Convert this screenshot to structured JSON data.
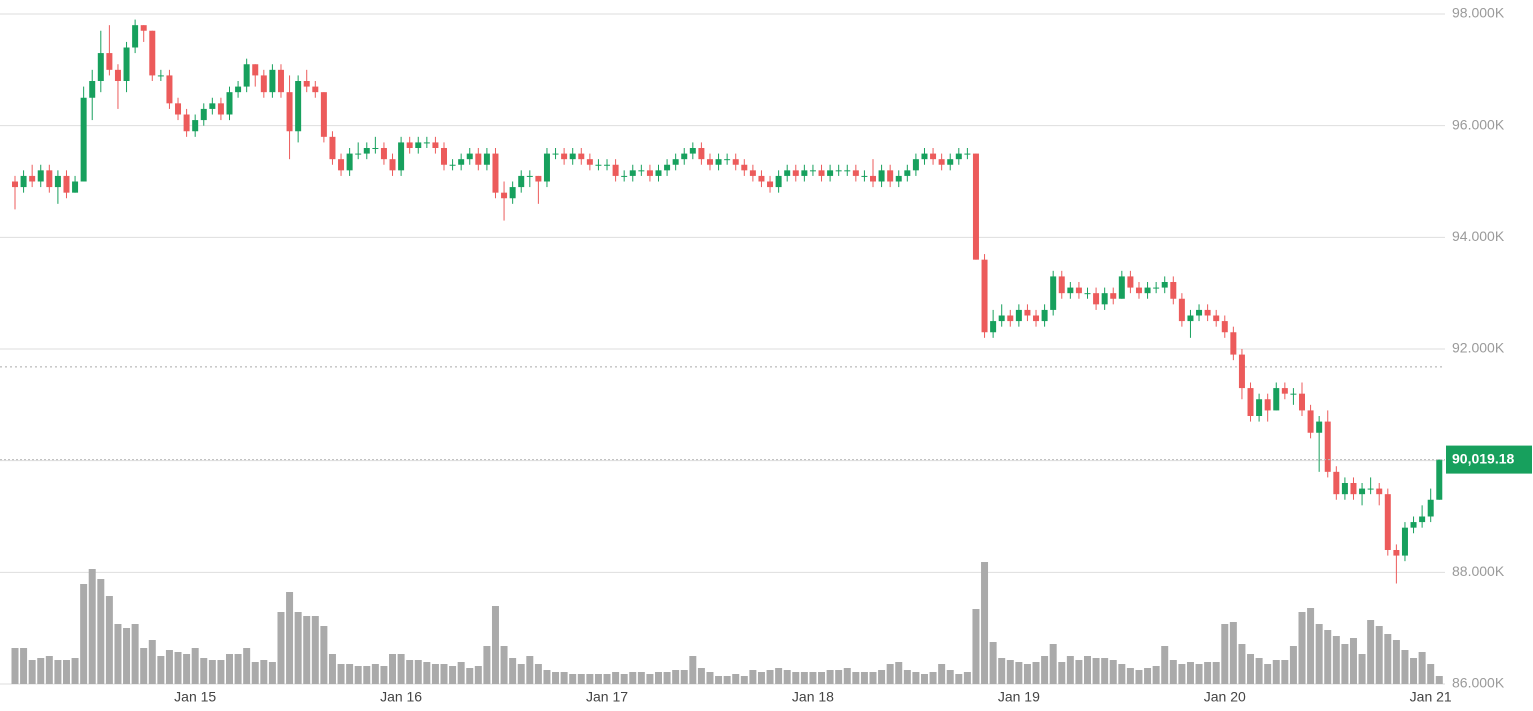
{
  "chart_data": {
    "type": "candlestick",
    "ylim": [
      86000,
      98000
    ],
    "yticks": [
      {
        "value": 86000,
        "label": "86.000K"
      },
      {
        "value": 88000,
        "label": "88.000K"
      },
      {
        "value": 90000,
        "label": "90.000K"
      },
      {
        "value": 92000,
        "label": "92.000K"
      },
      {
        "value": 94000,
        "label": "94.000K"
      },
      {
        "value": 96000,
        "label": "96.000K"
      },
      {
        "value": 98000,
        "label": "98.000K"
      }
    ],
    "grid": true,
    "up_color": "#17a05d",
    "down_color": "#ec5b5b",
    "volume_color": "#aaaaaa",
    "last_price_label": "90,019.18",
    "reference_line": 91680,
    "categories": [
      null,
      null,
      null,
      null,
      null,
      null,
      null,
      null,
      null,
      null,
      null,
      null,
      null,
      null,
      null,
      null,
      null,
      null,
      null,
      null,
      null,
      "Jan 15",
      null,
      null,
      null,
      null,
      null,
      null,
      null,
      null,
      null,
      null,
      null,
      null,
      null,
      null,
      null,
      null,
      null,
      null,
      null,
      null,
      null,
      null,
      null,
      "Jan 16",
      null,
      null,
      null,
      null,
      null,
      null,
      null,
      null,
      null,
      null,
      null,
      null,
      null,
      null,
      null,
      null,
      null,
      null,
      null,
      null,
      null,
      null,
      null,
      "Jan 17",
      null,
      null,
      null,
      null,
      null,
      null,
      null,
      null,
      null,
      null,
      null,
      null,
      null,
      null,
      null,
      null,
      null,
      null,
      null,
      null,
      null,
      null,
      null,
      "Jan 18",
      null,
      null,
      null,
      null,
      null,
      null,
      null,
      null,
      null,
      null,
      null,
      null,
      null,
      null,
      null,
      null,
      null,
      null,
      null,
      null,
      null,
      null,
      null,
      "Jan 19",
      null,
      null,
      null,
      null,
      null,
      null,
      null,
      null,
      null,
      null,
      null,
      null,
      null,
      null,
      null,
      null,
      null,
      null,
      null,
      null,
      null,
      null,
      null,
      "Jan 20",
      null,
      null,
      null,
      null,
      null,
      null,
      null,
      null,
      null,
      null,
      null,
      null,
      null,
      null,
      null,
      null,
      null,
      null,
      null,
      null,
      null,
      null,
      null,
      "Jan 21",
      null
    ],
    "ohlc": [
      [
        95000,
        95100,
        94500,
        94900
      ],
      [
        94900,
        95200,
        94800,
        95100
      ],
      [
        95100,
        95300,
        94900,
        95000
      ],
      [
        95000,
        95300,
        94900,
        95200
      ],
      [
        95200,
        95300,
        94800,
        94900
      ],
      [
        94900,
        95200,
        94600,
        95100
      ],
      [
        95100,
        95200,
        94700,
        94800
      ],
      [
        94800,
        95100,
        94800,
        95000
      ],
      [
        95000,
        96700,
        95000,
        96500
      ],
      [
        96500,
        97000,
        96100,
        96800
      ],
      [
        96800,
        97700,
        96600,
        97300
      ],
      [
        97300,
        97800,
        96900,
        97000
      ],
      [
        97000,
        97100,
        96300,
        96800
      ],
      [
        96800,
        97500,
        96600,
        97400
      ],
      [
        97400,
        97900,
        97300,
        97800
      ],
      [
        97800,
        97800,
        97500,
        97700
      ],
      [
        97700,
        97700,
        96800,
        96900
      ],
      [
        96900,
        97000,
        96800,
        96900
      ],
      [
        96900,
        97000,
        96300,
        96400
      ],
      [
        96400,
        96500,
        96100,
        96200
      ],
      [
        96200,
        96300,
        95800,
        95900
      ],
      [
        95900,
        96200,
        95800,
        96100
      ],
      [
        96100,
        96400,
        96000,
        96300
      ],
      [
        96300,
        96500,
        96200,
        96400
      ],
      [
        96400,
        96500,
        96100,
        96200
      ],
      [
        96200,
        96700,
        96100,
        96600
      ],
      [
        96600,
        96800,
        96500,
        96700
      ],
      [
        96700,
        97200,
        96600,
        97100
      ],
      [
        97100,
        97100,
        96700,
        96900
      ],
      [
        96900,
        97000,
        96500,
        96600
      ],
      [
        96600,
        97100,
        96500,
        97000
      ],
      [
        97000,
        97100,
        96500,
        96600
      ],
      [
        96600,
        96900,
        95400,
        95900
      ],
      [
        95900,
        96900,
        95700,
        96800
      ],
      [
        96800,
        97000,
        96600,
        96700
      ],
      [
        96700,
        96800,
        96500,
        96600
      ],
      [
        96600,
        96600,
        95700,
        95800
      ],
      [
        95800,
        95900,
        95300,
        95400
      ],
      [
        95400,
        95500,
        95100,
        95200
      ],
      [
        95200,
        95600,
        95100,
        95500
      ],
      [
        95500,
        95700,
        95400,
        95500
      ],
      [
        95500,
        95700,
        95400,
        95600
      ],
      [
        95600,
        95800,
        95500,
        95600
      ],
      [
        95600,
        95700,
        95300,
        95400
      ],
      [
        95400,
        95500,
        95100,
        95200
      ],
      [
        95200,
        95800,
        95100,
        95700
      ],
      [
        95700,
        95800,
        95500,
        95600
      ],
      [
        95600,
        95800,
        95500,
        95700
      ],
      [
        95700,
        95800,
        95600,
        95700
      ],
      [
        95700,
        95800,
        95500,
        95600
      ],
      [
        95600,
        95700,
        95200,
        95300
      ],
      [
        95300,
        95400,
        95200,
        95300
      ],
      [
        95300,
        95500,
        95200,
        95400
      ],
      [
        95400,
        95600,
        95300,
        95500
      ],
      [
        95500,
        95600,
        95200,
        95300
      ],
      [
        95300,
        95600,
        95200,
        95500
      ],
      [
        95500,
        95600,
        94700,
        94800
      ],
      [
        94800,
        95000,
        94300,
        94700
      ],
      [
        94700,
        95000,
        94600,
        94900
      ],
      [
        94900,
        95200,
        94800,
        95100
      ],
      [
        95100,
        95200,
        94900,
        95100
      ],
      [
        95100,
        95100,
        94600,
        95000
      ],
      [
        95000,
        95600,
        94900,
        95500
      ],
      [
        95500,
        95600,
        95400,
        95500
      ],
      [
        95500,
        95600,
        95300,
        95400
      ],
      [
        95400,
        95600,
        95300,
        95500
      ],
      [
        95500,
        95600,
        95300,
        95400
      ],
      [
        95400,
        95500,
        95200,
        95300
      ],
      [
        95300,
        95400,
        95200,
        95300
      ],
      [
        95300,
        95400,
        95200,
        95300
      ],
      [
        95300,
        95400,
        95000,
        95100
      ],
      [
        95100,
        95200,
        95000,
        95100
      ],
      [
        95100,
        95300,
        95000,
        95200
      ],
      [
        95200,
        95300,
        95100,
        95200
      ],
      [
        95200,
        95300,
        95000,
        95100
      ],
      [
        95100,
        95300,
        95000,
        95200
      ],
      [
        95200,
        95400,
        95100,
        95300
      ],
      [
        95300,
        95500,
        95200,
        95400
      ],
      [
        95400,
        95600,
        95300,
        95500
      ],
      [
        95500,
        95700,
        95400,
        95600
      ],
      [
        95600,
        95700,
        95300,
        95400
      ],
      [
        95400,
        95500,
        95200,
        95300
      ],
      [
        95300,
        95500,
        95200,
        95400
      ],
      [
        95400,
        95500,
        95300,
        95400
      ],
      [
        95400,
        95500,
        95200,
        95300
      ],
      [
        95300,
        95400,
        95100,
        95200
      ],
      [
        95200,
        95300,
        95000,
        95100
      ],
      [
        95100,
        95200,
        94900,
        95000
      ],
      [
        95000,
        95100,
        94800,
        94900
      ],
      [
        94900,
        95200,
        94800,
        95100
      ],
      [
        95100,
        95300,
        95000,
        95200
      ],
      [
        95200,
        95300,
        95000,
        95100
      ],
      [
        95100,
        95300,
        95000,
        95200
      ],
      [
        95200,
        95300,
        95100,
        95200
      ],
      [
        95200,
        95300,
        95000,
        95100
      ],
      [
        95100,
        95300,
        95000,
        95200
      ],
      [
        95200,
        95300,
        95100,
        95200
      ],
      [
        95200,
        95300,
        95100,
        95200
      ],
      [
        95200,
        95300,
        95000,
        95100
      ],
      [
        95100,
        95200,
        95000,
        95100
      ],
      [
        95100,
        95400,
        94900,
        95000
      ],
      [
        95000,
        95300,
        94900,
        95200
      ],
      [
        95200,
        95300,
        94900,
        95000
      ],
      [
        95000,
        95200,
        94900,
        95100
      ],
      [
        95100,
        95300,
        95000,
        95200
      ],
      [
        95200,
        95500,
        95100,
        95400
      ],
      [
        95400,
        95600,
        95300,
        95500
      ],
      [
        95500,
        95600,
        95300,
        95400
      ],
      [
        95400,
        95500,
        95200,
        95300
      ],
      [
        95300,
        95500,
        95200,
        95400
      ],
      [
        95400,
        95600,
        95300,
        95500
      ],
      [
        95500,
        95600,
        95400,
        95500
      ],
      [
        95500,
        95500,
        93600,
        93600
      ],
      [
        93600,
        93700,
        92200,
        92300
      ],
      [
        92300,
        92700,
        92200,
        92500
      ],
      [
        92500,
        92800,
        92400,
        92600
      ],
      [
        92600,
        92700,
        92400,
        92500
      ],
      [
        92500,
        92800,
        92400,
        92700
      ],
      [
        92700,
        92800,
        92500,
        92600
      ],
      [
        92600,
        92700,
        92400,
        92500
      ],
      [
        92500,
        92800,
        92400,
        92700
      ],
      [
        92700,
        93400,
        92600,
        93300
      ],
      [
        93300,
        93400,
        92900,
        93000
      ],
      [
        93000,
        93200,
        92900,
        93100
      ],
      [
        93100,
        93200,
        92900,
        93000
      ],
      [
        93000,
        93100,
        92900,
        93000
      ],
      [
        93000,
        93100,
        92700,
        92800
      ],
      [
        92800,
        93100,
        92700,
        93000
      ],
      [
        93000,
        93100,
        92800,
        92900
      ],
      [
        92900,
        93400,
        92900,
        93300
      ],
      [
        93300,
        93400,
        93000,
        93100
      ],
      [
        93100,
        93200,
        92900,
        93000
      ],
      [
        93000,
        93200,
        92900,
        93100
      ],
      [
        93100,
        93200,
        93000,
        93100
      ],
      [
        93100,
        93300,
        93000,
        93200
      ],
      [
        93200,
        93300,
        92800,
        92900
      ],
      [
        92900,
        93000,
        92400,
        92500
      ],
      [
        92500,
        92700,
        92200,
        92600
      ],
      [
        92600,
        92800,
        92500,
        92700
      ],
      [
        92700,
        92800,
        92500,
        92600
      ],
      [
        92600,
        92700,
        92400,
        92500
      ],
      [
        92500,
        92600,
        92200,
        92300
      ],
      [
        92300,
        92400,
        91800,
        91900
      ],
      [
        91900,
        92000,
        91100,
        91300
      ],
      [
        91300,
        91400,
        90700,
        90800
      ],
      [
        90800,
        91200,
        90700,
        91100
      ],
      [
        91100,
        91200,
        90700,
        90900
      ],
      [
        90900,
        91400,
        90900,
        91300
      ],
      [
        91300,
        91400,
        91100,
        91200
      ],
      [
        91200,
        91300,
        91000,
        91200
      ],
      [
        91200,
        91400,
        90800,
        90900
      ],
      [
        90900,
        91000,
        90400,
        90500
      ],
      [
        90500,
        90800,
        89800,
        90700
      ],
      [
        90700,
        90900,
        89700,
        89800
      ],
      [
        89800,
        89900,
        89300,
        89400
      ],
      [
        89400,
        89700,
        89300,
        89600
      ],
      [
        89600,
        89700,
        89300,
        89400
      ],
      [
        89400,
        89600,
        89200,
        89500
      ],
      [
        89500,
        89700,
        89400,
        89500
      ],
      [
        89500,
        89600,
        89200,
        89400
      ],
      [
        89400,
        89500,
        88300,
        88400
      ],
      [
        88400,
        88500,
        87800,
        88300
      ],
      [
        88300,
        88900,
        88200,
        88800
      ],
      [
        88800,
        89000,
        88700,
        88900
      ],
      [
        88900,
        89200,
        88800,
        89000
      ],
      [
        89000,
        89500,
        88900,
        89300
      ],
      [
        89300,
        90019.18,
        89300,
        90019.18
      ]
    ],
    "volume": [
      36,
      36,
      24,
      26,
      28,
      24,
      24,
      26,
      100,
      115,
      105,
      88,
      60,
      56,
      60,
      36,
      44,
      28,
      34,
      32,
      30,
      36,
      26,
      24,
      24,
      30,
      30,
      36,
      22,
      24,
      22,
      72,
      92,
      72,
      68,
      68,
      58,
      30,
      20,
      20,
      18,
      18,
      20,
      18,
      30,
      30,
      24,
      24,
      22,
      20,
      20,
      18,
      22,
      16,
      18,
      38,
      78,
      38,
      26,
      20,
      28,
      20,
      14,
      12,
      12,
      10,
      10,
      10,
      10,
      10,
      12,
      10,
      12,
      12,
      10,
      12,
      12,
      14,
      14,
      28,
      16,
      12,
      8,
      8,
      10,
      8,
      14,
      12,
      14,
      16,
      14,
      12,
      12,
      12,
      12,
      14,
      14,
      16,
      12,
      12,
      12,
      14,
      20,
      22,
      14,
      12,
      10,
      12,
      20,
      14,
      10,
      12,
      75,
      122,
      42,
      26,
      24,
      22,
      20,
      22,
      28,
      40,
      22,
      28,
      24,
      28,
      26,
      26,
      24,
      20,
      16,
      14,
      16,
      18,
      38,
      24,
      20,
      22,
      20,
      22,
      22,
      60,
      62,
      40,
      30,
      26,
      20,
      24,
      24,
      38,
      72,
      76,
      60,
      54,
      48,
      40,
      46,
      30,
      64,
      58,
      50,
      44,
      34,
      26,
      32,
      20,
      8
    ]
  }
}
